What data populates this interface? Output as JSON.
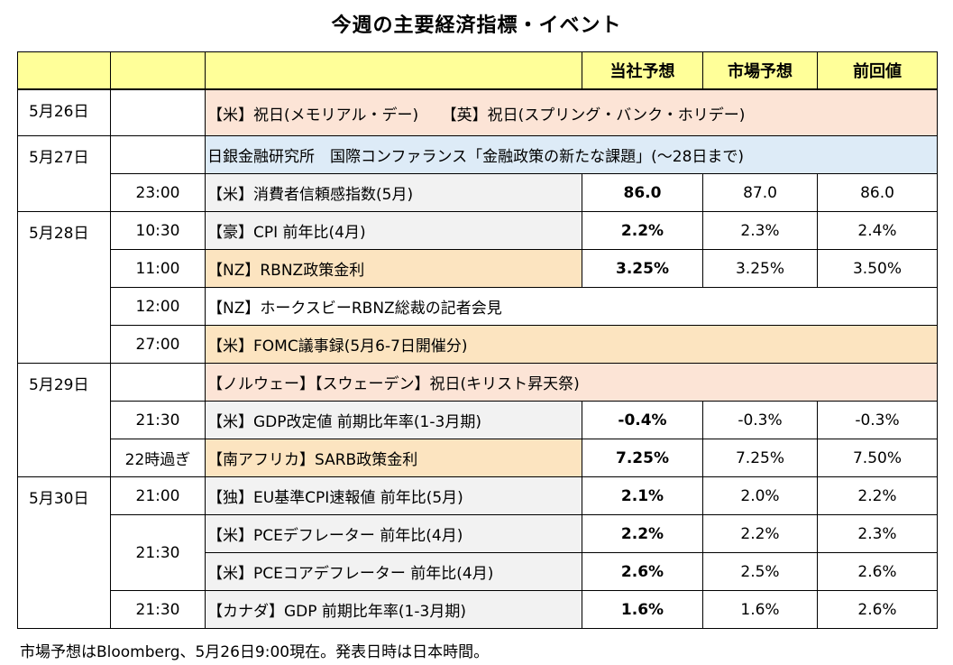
{
  "title": "今週の主要経済指標・イベント",
  "header": {
    "ours": "当社予想",
    "market": "市場予想",
    "prev": "前回値"
  },
  "rows": [
    {
      "date": "5月26日",
      "time": "",
      "event": "【米】祝日(メモリアル・デー)　　【英】祝日(スプリング・バンク・ホリデー)",
      "ours": "",
      "market": "",
      "prev": ""
    },
    {
      "date": "5月27日",
      "time": "",
      "event": "日銀金融研究所　国際コンファランス「金融政策の新たな課題」(～28日まで)",
      "ours": "",
      "market": "",
      "prev": ""
    },
    {
      "date": "",
      "time": "23:00",
      "event": "【米】消費者信頼感指数(5月)",
      "ours": "86.0",
      "market": "87.0",
      "prev": "86.0"
    },
    {
      "date": "5月28日",
      "time": "10:30",
      "event": "【豪】CPI 前年比(4月)",
      "ours": "2.2%",
      "market": "2.3%",
      "prev": "2.4%"
    },
    {
      "date": "",
      "time": "11:00",
      "event": "【NZ】RBNZ政策金利",
      "ours": "3.25%",
      "market": "3.25%",
      "prev": "3.50%"
    },
    {
      "date": "",
      "time": "12:00",
      "event": "【NZ】ホークスビーRBNZ総裁の記者会見",
      "ours": "",
      "market": "",
      "prev": ""
    },
    {
      "date": "",
      "time": "27:00",
      "event": "【米】FOMC議事録(5月6-7日開催分)",
      "ours": "",
      "market": "",
      "prev": ""
    },
    {
      "date": "5月29日",
      "time": "",
      "event": "【ノルウェー】【スウェーデン】祝日(キリスト昇天祭)",
      "ours": "",
      "market": "",
      "prev": ""
    },
    {
      "date": "",
      "time": "21:30",
      "event": "【米】GDP改定値 前期比年率(1-3月期)",
      "ours": "-0.4%",
      "market": "-0.3%",
      "prev": "-0.3%"
    },
    {
      "date": "",
      "time": "22時過ぎ",
      "event": "【南アフリカ】SARB政策金利",
      "ours": "7.25%",
      "market": "7.25%",
      "prev": "7.50%"
    },
    {
      "date": "5月30日",
      "time": "21:00",
      "event": "【独】EU基準CPI速報値 前年比(5月)",
      "ours": "2.1%",
      "market": "2.0%",
      "prev": "2.2%"
    },
    {
      "date": "",
      "time": "21:30",
      "event": "【米】PCEデフレーター 前年比(4月)",
      "ours": "2.2%",
      "market": "2.2%",
      "prev": "2.3%"
    },
    {
      "date": "",
      "time": "",
      "event": "【米】PCEコアデフレーター 前年比(4月)",
      "ours": "2.6%",
      "market": "2.5%",
      "prev": "2.6%"
    },
    {
      "date": "",
      "time": "21:30",
      "event": "【カナダ】GDP 前期比年率(1-3月期)",
      "ours": "1.6%",
      "market": "1.6%",
      "prev": "2.6%"
    }
  ],
  "note": "市場予想はBloomberg、5月26日9:00現在。発表日時は日本時間。",
  "colors": {
    "header": "#ffff99",
    "holiday": "#fce4d6",
    "boj": "#ddebf7",
    "policy": "#fce4c0",
    "grey": "#f2f2f2"
  }
}
